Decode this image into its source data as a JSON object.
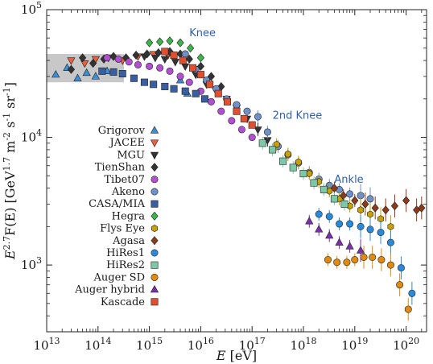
{
  "chart_data": {
    "type": "scatter",
    "xlabel": "E  [eV]",
    "ylabel": "E^{2.7}F(E) [GeV^{1.7} m^{-2} s^{-1} sr^{-1}]",
    "x_scale": "log",
    "y_scale": "log",
    "xlim": [
      10000000000000.0,
      2.5e+20
    ],
    "ylim": [
      300,
      100000
    ],
    "grid": false,
    "legend_position": "left",
    "x_ticks": [
      {
        "value": 10000000000000.0,
        "base": "10",
        "exp": "13"
      },
      {
        "value": 100000000000000.0,
        "base": "10",
        "exp": "14"
      },
      {
        "value": 1000000000000000.0,
        "base": "10",
        "exp": "15"
      },
      {
        "value": 1e+16,
        "base": "10",
        "exp": "16"
      },
      {
        "value": 1e+17,
        "base": "10",
        "exp": "17"
      },
      {
        "value": 1e+18,
        "base": "10",
        "exp": "18"
      },
      {
        "value": 1e+19,
        "base": "10",
        "exp": "19"
      },
      {
        "value": 1e+20,
        "base": "10",
        "exp": "20"
      }
    ],
    "y_ticks": [
      {
        "value": 1000,
        "base": "10",
        "exp": "3"
      },
      {
        "value": 10000,
        "base": "10",
        "exp": "4"
      },
      {
        "value": 100000,
        "base": "10",
        "exp": "5"
      }
    ],
    "band": {
      "x": [
        10000000000000.0,
        320000000000000.0
      ],
      "y": [
        27000,
        45000
      ],
      "color": "#c8c8c8"
    },
    "annotations": [
      {
        "text": "Knee",
        "x": 6000000000000000.0,
        "y": 62000
      },
      {
        "text": "2nd Knee",
        "x": 2.5e+17,
        "y": 14000
      },
      {
        "text": "Ankle",
        "x": 4e+18,
        "y": 4400
      }
    ],
    "series": [
      {
        "name": "Grigorov",
        "marker": "triangle-up",
        "color": "#3a8fd8",
        "points": [
          [
            15000000000000.0,
            31000
          ],
          [
            25000000000000.0,
            35000
          ],
          [
            40000000000000.0,
            29000
          ],
          [
            60000000000000.0,
            32000
          ],
          [
            90000000000000.0,
            30000
          ],
          [
            150000000000000.0,
            33000
          ],
          [
            4000000000000000.0,
            28000
          ],
          [
            5500000000000000.0,
            22000
          ]
        ]
      },
      {
        "name": "JACEE",
        "marker": "triangle-down",
        "color": "#e8603c",
        "points": [
          [
            30000000000000.0,
            40000
          ],
          [
            55000000000000.0,
            38000
          ],
          [
            90000000000000.0,
            41000
          ],
          [
            160000000000000.0,
            42000
          ],
          [
            300000000000000.0,
            40000
          ],
          [
            600000000000000.0,
            43000
          ],
          [
            1200000000000000.0,
            45000
          ],
          [
            2300000000000000.0,
            44000
          ]
        ]
      },
      {
        "name": "MGU",
        "marker": "triangle-down",
        "color": "#333333",
        "points": [
          [
            800000000000000.0,
            43000
          ],
          [
            1300000000000000.0,
            42000
          ],
          [
            2000000000000000.0,
            41000
          ],
          [
            3200000000000000.0,
            39000
          ],
          [
            5000000000000000.0,
            36000
          ],
          [
            8000000000000000.0,
            31000
          ],
          [
            1.3e+16,
            26000
          ],
          [
            2e+16,
            23000
          ],
          [
            3.2e+16,
            20000
          ],
          [
            5e+16,
            17000
          ],
          [
            8e+16,
            14000
          ],
          [
            1.3e+17,
            11500
          ],
          [
            2e+17,
            9500
          ]
        ]
      },
      {
        "name": "TienShan",
        "marker": "diamond",
        "color": "#333333",
        "points": [
          [
            30000000000000.0,
            34000
          ],
          [
            50000000000000.0,
            42000
          ],
          [
            80000000000000.0,
            38000
          ],
          [
            130000000000000.0,
            41000
          ],
          [
            200000000000000.0,
            43000
          ],
          [
            350000000000000.0,
            42000
          ],
          [
            550000000000000.0,
            44000
          ],
          [
            900000000000000.0,
            45000
          ],
          [
            1500000000000000.0,
            46000
          ],
          [
            2500000000000000.0,
            47000
          ],
          [
            4000000000000000.0,
            45000
          ],
          [
            6000000000000000.0,
            41000
          ],
          [
            1e+16,
            36000
          ],
          [
            1.6e+16,
            30000
          ],
          [
            2.5e+16,
            25000
          ]
        ]
      },
      {
        "name": "Tibet07",
        "marker": "circle",
        "color": "#b050d0",
        "points": [
          [
            150000000000000.0,
            42000
          ],
          [
            250000000000000.0,
            41000
          ],
          [
            400000000000000.0,
            39000
          ],
          [
            600000000000000.0,
            37000
          ],
          [
            1000000000000000.0,
            36000
          ],
          [
            1600000000000000.0,
            35000
          ],
          [
            2500000000000000.0,
            33000
          ],
          [
            4000000000000000.0,
            30000
          ],
          [
            6000000000000000.0,
            27000
          ],
          [
            1e+16,
            23000
          ],
          [
            1.6e+16,
            19000
          ],
          [
            2.5e+16,
            16000
          ],
          [
            4e+16,
            13500
          ],
          [
            6.3e+16,
            11500
          ],
          [
            1e+17,
            10000
          ]
        ]
      },
      {
        "name": "Akeno",
        "marker": "circle",
        "color": "#7090c8",
        "points": [
          [
            5000000000000000.0,
            45000
          ],
          [
            8000000000000000.0,
            34000
          ],
          [
            1.3e+16,
            28000
          ],
          [
            2e+16,
            24000
          ],
          [
            3.2e+16,
            20000
          ],
          [
            5e+16,
            18000
          ],
          [
            8e+16,
            16000
          ],
          [
            1.3e+17,
            14500
          ],
          [
            2e+17,
            11000
          ],
          [
            3.2e+17,
            8500
          ],
          [
            5e+17,
            7300
          ],
          [
            8e+17,
            6300
          ],
          [
            1.3e+18,
            5300
          ],
          [
            2e+18,
            4700
          ],
          [
            3.2e+18,
            4200
          ],
          [
            5e+18,
            3900
          ],
          [
            8e+18,
            3600
          ],
          [
            1.3e+19,
            3500
          ],
          [
            2e+19,
            3300
          ]
        ]
      },
      {
        "name": "CASA/MIA",
        "marker": "square",
        "color": "#3a5fa0",
        "points": [
          [
            120000000000000.0,
            33000
          ],
          [
            200000000000000.0,
            32500
          ],
          [
            300000000000000.0,
            31500
          ],
          [
            500000000000000.0,
            29000
          ],
          [
            800000000000000.0,
            27000
          ],
          [
            1200000000000000.0,
            26000
          ],
          [
            2000000000000000.0,
            25000
          ],
          [
            3000000000000000.0,
            24000
          ],
          [
            5000000000000000.0,
            23000
          ],
          [
            8000000000000000.0,
            22000
          ],
          [
            1.2e+16,
            20000
          ]
        ]
      },
      {
        "name": "Hegra",
        "marker": "diamond",
        "color": "#3cb44b",
        "points": [
          [
            1000000000000000.0,
            55000
          ],
          [
            1600000000000000.0,
            56000
          ],
          [
            2500000000000000.0,
            57000
          ],
          [
            4000000000000000.0,
            55000
          ],
          [
            6300000000000000.0,
            50000
          ],
          [
            1e+16,
            42000
          ]
        ]
      },
      {
        "name": "Flys Eye",
        "marker": "hexagon",
        "color": "#c8a000",
        "points": [
          [
            3e+17,
            8800
          ],
          [
            5e+17,
            7400
          ],
          [
            8e+17,
            6400
          ],
          [
            1.3e+18,
            5200
          ],
          [
            2e+18,
            4500
          ],
          [
            3.2e+18,
            3800
          ],
          [
            5e+18,
            3300
          ],
          [
            8e+18,
            2900
          ],
          [
            1.3e+19,
            2700
          ],
          [
            2e+19,
            2500
          ],
          [
            3.2e+19,
            2300
          ],
          [
            5e+19,
            2000
          ]
        ]
      },
      {
        "name": "Agasa",
        "marker": "diamond",
        "color": "#8b3a1a",
        "points": [
          [
            4e+18,
            4000
          ],
          [
            6e+18,
            3500
          ],
          [
            1e+19,
            3200
          ],
          [
            1.6e+19,
            3000
          ],
          [
            2.5e+19,
            2800
          ],
          [
            4e+19,
            2700
          ],
          [
            6e+19,
            2900
          ],
          [
            1e+20,
            3200
          ],
          [
            1.6e+20,
            2700
          ],
          [
            2e+20,
            2800
          ]
        ]
      },
      {
        "name": "HiRes1",
        "marker": "circle",
        "color": "#2a8ad8",
        "points": [
          [
            2e+18,
            2500
          ],
          [
            3.2e+18,
            2400
          ],
          [
            5e+18,
            2100
          ],
          [
            8e+18,
            2100
          ],
          [
            1.3e+19,
            2000
          ],
          [
            2e+19,
            1900
          ],
          [
            3.2e+19,
            1800
          ],
          [
            5e+19,
            1500
          ],
          [
            8e+19,
            950
          ],
          [
            1.3e+20,
            600
          ]
        ]
      },
      {
        "name": "HiRes2",
        "marker": "square",
        "color": "#7ec8a8",
        "points": [
          [
            1.6e+17,
            9000
          ],
          [
            2.5e+17,
            8000
          ],
          [
            4e+17,
            6500
          ],
          [
            6.3e+17,
            5800
          ],
          [
            1e+18,
            5200
          ],
          [
            1.6e+18,
            4400
          ],
          [
            2.5e+18,
            3900
          ],
          [
            4e+18,
            3300
          ],
          [
            6.3e+18,
            3000
          ]
        ]
      },
      {
        "name": "Auger SD",
        "marker": "circle",
        "color": "#e08a10",
        "points": [
          [
            3e+18,
            1100
          ],
          [
            4.5e+18,
            1050
          ],
          [
            7e+18,
            1050
          ],
          [
            1e+19,
            1100
          ],
          [
            1.5e+19,
            1150
          ],
          [
            2.2e+19,
            1150
          ],
          [
            3.3e+19,
            1100
          ],
          [
            5e+19,
            1000
          ],
          [
            7.5e+19,
            700
          ],
          [
            1.1e+20,
            450
          ]
        ]
      },
      {
        "name": "Auger hybrid",
        "marker": "triangle-up",
        "color": "#7a30a8",
        "points": [
          [
            1.3e+18,
            2200
          ],
          [
            2e+18,
            1900
          ],
          [
            3.2e+18,
            1700
          ],
          [
            5e+18,
            1500
          ],
          [
            8e+18,
            1400
          ],
          [
            1.3e+19,
            1300
          ]
        ]
      },
      {
        "name": "Kascade",
        "marker": "square",
        "color": "#e05030",
        "points": [
          [
            2000000000000000.0,
            47000
          ],
          [
            3000000000000000.0,
            44000
          ],
          [
            4500000000000000.0,
            40000
          ],
          [
            7000000000000000.0,
            35000
          ],
          [
            1e+16,
            31000
          ],
          [
            1.5e+16,
            26000
          ],
          [
            2.2e+16,
            22000
          ],
          [
            3.3e+16,
            19000
          ],
          [
            5e+16,
            16000
          ],
          [
            7e+16,
            14000
          ],
          [
            1e+17,
            12500
          ]
        ]
      }
    ]
  }
}
